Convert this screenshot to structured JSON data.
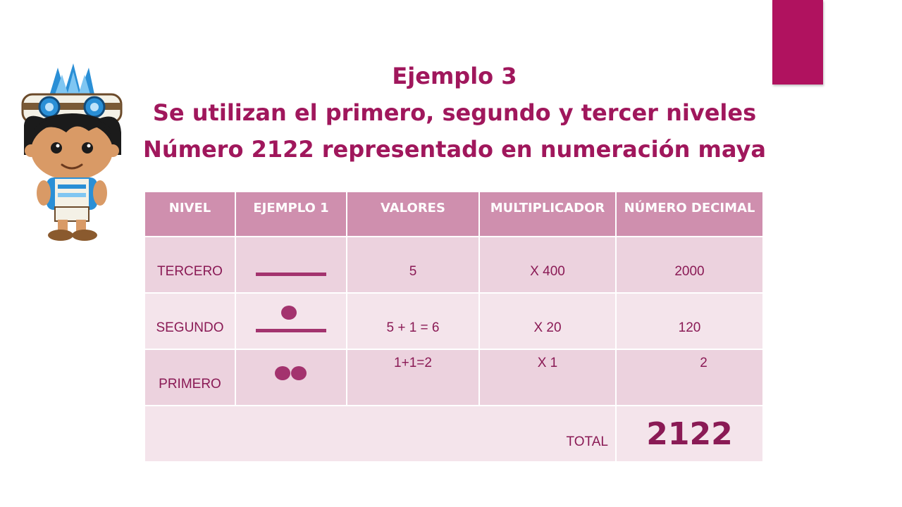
{
  "title": {
    "line1": "Ejemplo 3",
    "line2": "Se utilizan el primero, segundo y tercer niveles",
    "line3": "Número 2122 representado en numeración maya"
  },
  "table": {
    "headers": [
      "NIVEL",
      "EJEMPLO 1",
      "VALORES",
      "MULTIPLICADOR",
      "NÚMERO DECIMAL"
    ],
    "rows": [
      {
        "nivel": "TERCERO",
        "glyph": "bar",
        "valores": "5",
        "multiplicador": "X 400",
        "decimal": "2000"
      },
      {
        "nivel": "SEGUNDO",
        "glyph": "dot-over-bar",
        "valores": "5 + 1 = 6",
        "multiplicador": "X 20",
        "decimal": "120"
      },
      {
        "nivel": "PRIMERO",
        "glyph": "two-dots",
        "valores": "1+1=2",
        "multiplicador": "X 1",
        "decimal": "2"
      }
    ],
    "total_label": "TOTAL",
    "total_value": "2122"
  },
  "colors": {
    "accent": "#b0125f",
    "title": "#a0175c",
    "header_bg": "#cf8fae",
    "glyph": "#a3336e"
  },
  "mascot": {
    "icon": "aztec-boy-mascot-icon"
  }
}
